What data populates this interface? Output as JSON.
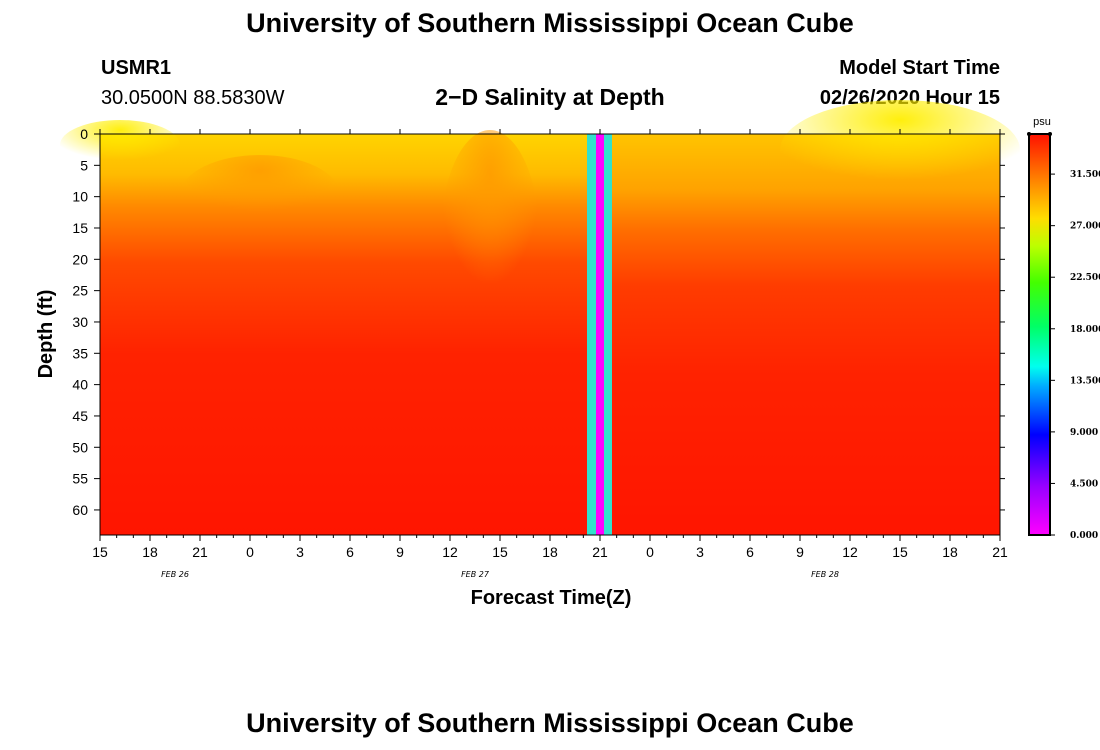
{
  "header": {
    "title": "University of Southern Mississippi Ocean Cube",
    "station": "USMR1",
    "coords": "30.0500N 88.5830W",
    "plot_title": "2−D Salinity at Depth",
    "model_label": "Model Start Time",
    "model_time": "02/26/2020 Hour 15"
  },
  "footer": {
    "title": "University of Southern Mississippi Ocean Cube"
  },
  "chart_data": {
    "type": "heatmap",
    "title": "2−D Salinity at Depth",
    "xlabel": "Forecast Time(Z)",
    "ylabel": "Depth (ft)",
    "x_tick_labels": [
      "15",
      "18",
      "21",
      "0",
      "3",
      "6",
      "9",
      "12",
      "15",
      "18",
      "21",
      "0",
      "3",
      "6",
      "9",
      "12",
      "15",
      "18",
      "21"
    ],
    "x_date_labels": [
      {
        "label": "FEB 26",
        "tick_index": 1
      },
      {
        "label": "FEB 27",
        "tick_index": 7
      },
      {
        "label": "FEB 28",
        "tick_index": 14
      }
    ],
    "y_tick_labels": [
      "0",
      "5",
      "10",
      "15",
      "20",
      "25",
      "30",
      "35",
      "40",
      "45",
      "50",
      "55",
      "60"
    ],
    "ylim": [
      0,
      64
    ],
    "colorbar": {
      "unit": "psu",
      "ticks": [
        "0.000",
        "4.500",
        "9.000",
        "13.500",
        "18.000",
        "22.500",
        "27.000",
        "31.500"
      ],
      "range": [
        0,
        35
      ]
    },
    "description_values": {
      "surface_salinity_psu": 29.5,
      "bottom_salinity_psu": 34.5,
      "missing_data_column_hour": 21
    },
    "colors": {
      "low": "#ff00ff",
      "mid": "#00ff80",
      "high": "#ff1a00",
      "missing_outer": "#33e0cc",
      "missing_inner": "#ff00ff"
    }
  }
}
